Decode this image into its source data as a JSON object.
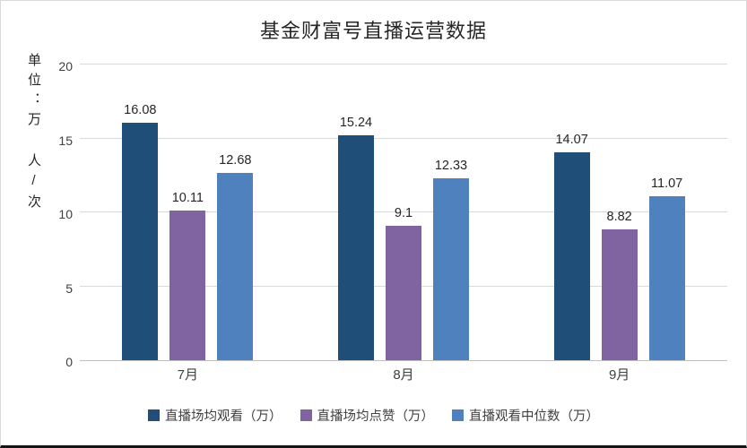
{
  "chart_data": {
    "type": "bar",
    "title": "基金财富号直播运营数据",
    "ylabel": "单位：万 人/次",
    "categories": [
      "7月",
      "8月",
      "9月"
    ],
    "series": [
      {
        "name": "直播场均观看（万）",
        "color": "#1F4E79",
        "values": [
          16.08,
          15.24,
          14.07
        ]
      },
      {
        "name": "直播场均点赞（万）",
        "color": "#8064A2",
        "values": [
          10.11,
          9.1,
          8.82
        ]
      },
      {
        "name": "直播观看中位数（万）",
        "color": "#4E81BD",
        "values": [
          12.68,
          12.33,
          11.07
        ]
      }
    ],
    "ylim": [
      0,
      20
    ],
    "yticks": [
      0,
      5,
      10,
      15,
      20
    ],
    "grid": true,
    "legend_position": "bottom"
  }
}
